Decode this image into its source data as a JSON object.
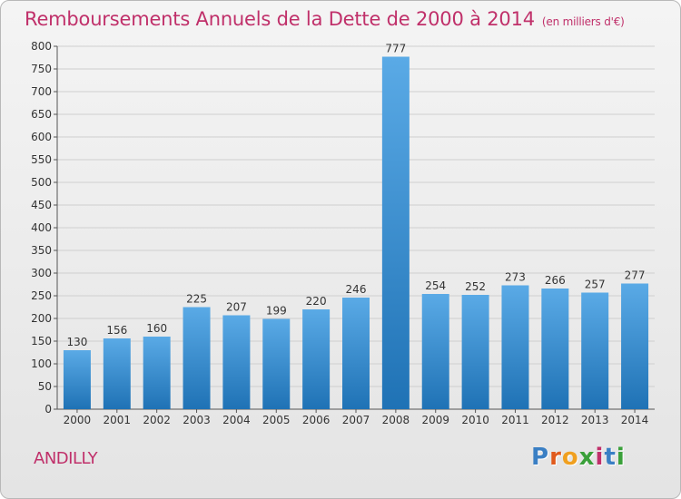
{
  "header": {
    "title": "Remboursements Annuels de la Dette de 2000 à 2014",
    "unit": "(en milliers d'€)"
  },
  "commune": "ANDILLY",
  "logo": {
    "text": "Proxiti",
    "letters": [
      "P",
      "r",
      "o",
      "x",
      "i",
      "t",
      "i"
    ],
    "colors": [
      "#3a7fc4",
      "#e05a1c",
      "#f0a020",
      "#3aa03a",
      "#c0306a",
      "#3a7fc4",
      "#3aa03a"
    ]
  },
  "colors": {
    "bar_light": "#5aaae6",
    "bar_dark": "#1f72b5",
    "title": "#c0306a"
  },
  "chart_data": {
    "type": "bar",
    "title": "Remboursements Annuels de la Dette de 2000 à 2014",
    "xlabel": "",
    "ylabel": "",
    "categories": [
      "2000",
      "2001",
      "2002",
      "2003",
      "2004",
      "2005",
      "2006",
      "2007",
      "2008",
      "2009",
      "2010",
      "2011",
      "2012",
      "2013",
      "2014"
    ],
    "values": [
      130,
      156,
      160,
      225,
      207,
      199,
      220,
      246,
      777,
      254,
      252,
      273,
      266,
      257,
      277
    ],
    "ylim": [
      0,
      800
    ],
    "yticks": [
      0,
      50,
      100,
      150,
      200,
      250,
      300,
      350,
      400,
      450,
      500,
      550,
      600,
      650,
      700,
      750,
      800
    ],
    "grid": true,
    "legend": "none"
  }
}
